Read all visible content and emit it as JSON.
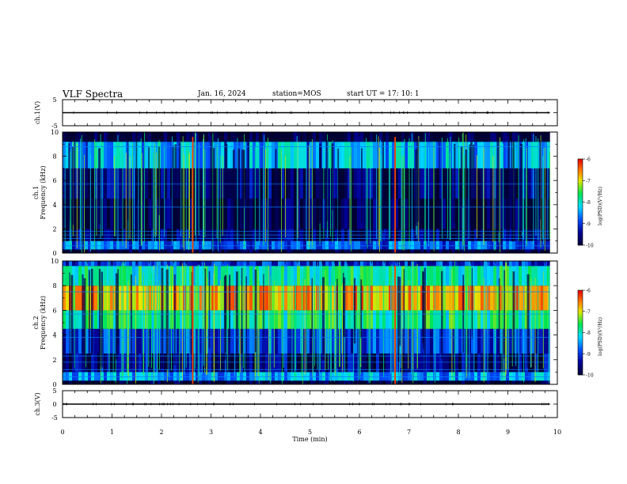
{
  "header": {
    "title": "VLF Spectra",
    "date": "Jan. 16, 2024",
    "station": "station=MOS",
    "start_ut": "start  UT =   17: 10: 1"
  },
  "chart_data": [
    {
      "type": "line",
      "panel": "ch1-voltage",
      "ylabel": "ch.1(V)",
      "ylim": [
        -5,
        5
      ],
      "yticks": [
        "5",
        "-5"
      ],
      "x": [
        0,
        9.85
      ],
      "y": [
        0,
        0
      ],
      "line_color": "#000000"
    },
    {
      "type": "heatmap",
      "panel": "ch1-spectrogram",
      "ylabel": "ch.1\nFrequency (kHz)",
      "ylim": [
        0,
        10
      ],
      "yticks": [
        "0",
        "2",
        "4",
        "6",
        "8",
        "10"
      ],
      "xlim": [
        0,
        9.85
      ],
      "colorbar": {
        "label": "log(PSD)(V²/Hz)",
        "range": [
          -10,
          -6
        ],
        "ticks": [
          "-6",
          "-7",
          "-8",
          "-9",
          "-10"
        ]
      },
      "bands": [
        {
          "from": 0.0,
          "to": 0.3,
          "level": -10
        },
        {
          "from": 0.3,
          "to": 1.0,
          "level": -8.8
        },
        {
          "from": 1.0,
          "to": 2.0,
          "level": -9.7
        },
        {
          "from": 2.0,
          "to": 4.5,
          "level": -9.9
        },
        {
          "from": 4.5,
          "to": 7.0,
          "level": -9.6
        },
        {
          "from": 7.0,
          "to": 9.2,
          "level": -8.4
        },
        {
          "from": 9.2,
          "to": 10.0,
          "level": -10
        }
      ],
      "tones_khz": [
        0.6,
        1.2,
        1.5,
        1.8,
        3.8,
        5.7,
        8.8
      ],
      "red_bursts_min": [
        2.63,
        6.72
      ]
    },
    {
      "type": "heatmap",
      "panel": "ch2-spectrogram",
      "ylabel": "ch.2\nFrequency (kHz)",
      "ylim": [
        0,
        10
      ],
      "yticks": [
        "0",
        "2",
        "4",
        "6",
        "8",
        "10"
      ],
      "xlim": [
        0,
        9.85
      ],
      "colorbar": {
        "label": "log(PSD)(V²/Hz)",
        "range": [
          -10,
          -6
        ],
        "ticks": [
          "-6",
          "-7",
          "-8",
          "-9",
          "-10"
        ]
      },
      "bands": [
        {
          "from": 0.0,
          "to": 0.3,
          "level": -10
        },
        {
          "from": 0.3,
          "to": 1.0,
          "level": -8.5
        },
        {
          "from": 1.0,
          "to": 2.5,
          "level": -9.6
        },
        {
          "from": 2.5,
          "to": 4.5,
          "level": -9.0
        },
        {
          "from": 4.5,
          "to": 6.0,
          "level": -7.8
        },
        {
          "from": 6.0,
          "to": 8.0,
          "level": -6.8
        },
        {
          "from": 8.0,
          "to": 9.6,
          "level": -7.9
        },
        {
          "from": 9.6,
          "to": 10.0,
          "level": -9.0
        }
      ],
      "tones_khz": [
        0.6,
        1.2,
        1.8,
        2.3,
        3.8,
        5.7,
        7.5
      ],
      "red_bursts_min": [
        2.63,
        6.72
      ]
    },
    {
      "type": "line",
      "panel": "ch3-voltage",
      "ylabel": "ch.3(V)",
      "ylim": [
        -5,
        5
      ],
      "yticks": [
        "5",
        "0",
        "-5"
      ],
      "x": [
        0,
        9.85
      ],
      "y": [
        0,
        0
      ],
      "line_color": "#000000"
    }
  ],
  "x_axis": {
    "label": "Time  (min)",
    "ticks": [
      "0",
      "1",
      "2",
      "3",
      "4",
      "5",
      "6",
      "7",
      "8",
      "9",
      "10"
    ],
    "xlim": [
      0,
      10
    ]
  }
}
